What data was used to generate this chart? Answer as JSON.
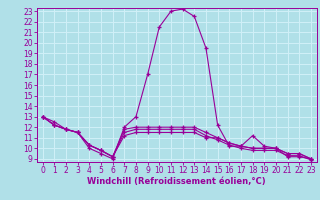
{
  "xlabel": "Windchill (Refroidissement éolien,°C)",
  "x": [
    0,
    1,
    2,
    3,
    4,
    5,
    6,
    7,
    8,
    9,
    10,
    11,
    12,
    13,
    14,
    15,
    16,
    17,
    18,
    19,
    20,
    21,
    22,
    23
  ],
  "line1": [
    13.0,
    12.5,
    11.8,
    11.5,
    10.0,
    9.5,
    9.0,
    12.0,
    13.0,
    17.0,
    21.5,
    23.0,
    23.2,
    22.5,
    19.5,
    12.2,
    10.2,
    10.2,
    11.2,
    10.2,
    10.0,
    9.2,
    9.2,
    9.0
  ],
  "line2": [
    13.0,
    12.2,
    11.8,
    11.5,
    10.3,
    9.8,
    9.2,
    11.2,
    11.5,
    11.5,
    11.5,
    11.5,
    11.5,
    11.5,
    11.0,
    11.0,
    10.5,
    10.2,
    10.0,
    10.0,
    10.0,
    9.5,
    9.5,
    9.0
  ],
  "line3": [
    13.0,
    12.2,
    11.8,
    11.5,
    10.3,
    9.8,
    9.2,
    11.8,
    12.0,
    12.0,
    12.0,
    12.0,
    12.0,
    12.0,
    11.5,
    11.0,
    10.5,
    10.2,
    10.0,
    10.0,
    10.0,
    9.5,
    9.5,
    9.0
  ],
  "line4": [
    13.0,
    12.2,
    11.8,
    11.5,
    10.3,
    9.8,
    9.2,
    11.5,
    11.8,
    11.8,
    11.8,
    11.8,
    11.8,
    11.8,
    11.2,
    10.8,
    10.3,
    10.0,
    9.8,
    9.8,
    9.8,
    9.3,
    9.3,
    8.9
  ],
  "line_color": "#990099",
  "bg_color": "#b0e0e8",
  "grid_color": "#d0f0f8",
  "ylim_min": 9,
  "ylim_max": 23,
  "xlim_min": 0,
  "xlim_max": 23,
  "yticks": [
    9,
    10,
    11,
    12,
    13,
    14,
    15,
    16,
    17,
    18,
    19,
    20,
    21,
    22,
    23
  ],
  "xticks": [
    0,
    1,
    2,
    3,
    4,
    5,
    6,
    7,
    8,
    9,
    10,
    11,
    12,
    13,
    14,
    15,
    16,
    17,
    18,
    19,
    20,
    21,
    22,
    23
  ],
  "tick_fontsize": 5.5,
  "xlabel_fontsize": 6.0,
  "linewidth": 0.8,
  "markersize": 3.5,
  "markeredgewidth": 0.9
}
